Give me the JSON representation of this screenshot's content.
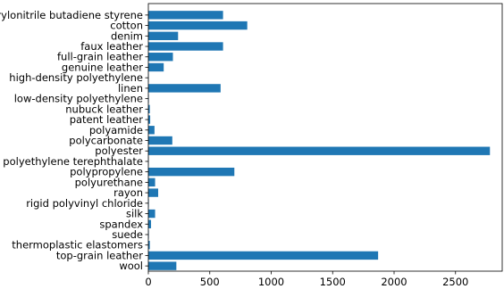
{
  "chart_data": {
    "type": "bar",
    "orientation": "horizontal",
    "title": "",
    "xlabel": "",
    "ylabel": "",
    "xlim": [
      0,
      2880
    ],
    "xticks": [
      0,
      500,
      1000,
      1500,
      2000,
      2500
    ],
    "grid": false,
    "bar_color": "#1f77b4",
    "categories": [
      "acrylonitrile butadiene styrene",
      "cotton",
      "denim",
      "faux leather",
      "full-grain leather",
      "genuine leather",
      "high-density polyethylene",
      "linen",
      "low-density polyethylene",
      "nubuck leather",
      "patent leather",
      "polyamide",
      "polycarbonate",
      "polyester",
      "polyethylene terephthalate",
      "polypropylene",
      "polyurethane",
      "rayon",
      "rigid polyvinyl chloride",
      "silk",
      "spandex",
      "suede",
      "thermoplastic elastomers",
      "top-grain leather",
      "wool"
    ],
    "values": [
      608,
      805,
      242,
      608,
      200,
      125,
      3,
      588,
      4,
      12,
      15,
      50,
      195,
      2780,
      3,
      700,
      55,
      80,
      4,
      55,
      22,
      4,
      12,
      1870,
      228
    ]
  }
}
